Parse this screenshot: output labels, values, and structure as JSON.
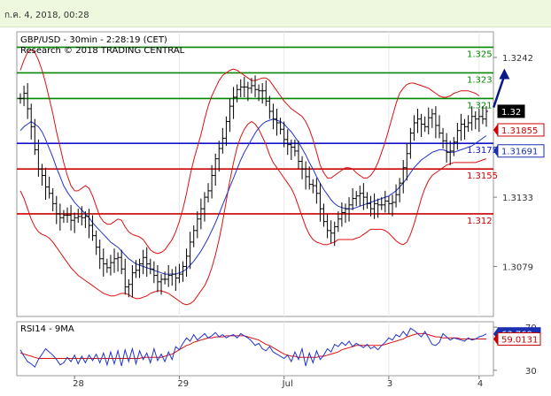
{
  "header": {
    "timestamp": "ก.ค. 4, 2018, 00:28"
  },
  "chart_data": [
    {
      "type": "line",
      "panel": "price",
      "title_line1": "GBP/USD - 30min - 2:28:19 (CET)",
      "title_line2": "Research © 2018 TRADING CENTRAL",
      "ylim": [
        1.304,
        1.3262
      ],
      "y_ticks": [
        {
          "value": 1.3242,
          "label": "1.3242"
        },
        {
          "value": 1.3133,
          "label": "1.3133"
        },
        {
          "value": 1.3079,
          "label": "1.3079"
        }
      ],
      "x_ticks": [
        {
          "index": 15,
          "label": "28"
        },
        {
          "index": 44,
          "label": "29"
        },
        {
          "index": 73,
          "label": "Jul"
        },
        {
          "index": 102,
          "label": "3"
        },
        {
          "index": 127,
          "label": "4"
        }
      ],
      "levels": [
        {
          "value": 1.325,
          "label": "1.325",
          "role": "target"
        },
        {
          "value": 1.323,
          "label": "1.323",
          "role": "target"
        },
        {
          "value": 1.321,
          "label": "1.321",
          "role": "target"
        },
        {
          "value": 1.3175,
          "label": "1.3175",
          "role": "pivot"
        },
        {
          "value": 1.3155,
          "label": "1.3155",
          "role": "support"
        },
        {
          "value": 1.312,
          "label": "1.312",
          "role": "support"
        }
      ],
      "badges": [
        {
          "value": 1.32,
          "label": "1.32",
          "kind": "last"
        },
        {
          "value": 1.31855,
          "label": "1.31855",
          "kind": "red"
        },
        {
          "value": 1.31691,
          "label": "1.31691",
          "kind": "blue"
        }
      ],
      "forecast_arrow": {
        "from": [
          131,
          1.3203
        ],
        "to": [
          134,
          1.3232
        ]
      },
      "close": [
        1.321,
        1.3214,
        1.3202,
        1.3188,
        1.317,
        1.3155,
        1.315,
        1.3141,
        1.3136,
        1.3128,
        1.312,
        1.3117,
        1.3119,
        1.3119,
        1.3115,
        1.3117,
        1.3118,
        1.3117,
        1.3118,
        1.3111,
        1.3103,
        1.3094,
        1.3085,
        1.3081,
        1.3078,
        1.3082,
        1.3085,
        1.3086,
        1.3077,
        1.3063,
        1.3065,
        1.3074,
        1.3076,
        1.3081,
        1.3086,
        1.3081,
        1.3077,
        1.3072,
        1.3067,
        1.3069,
        1.3069,
        1.3072,
        1.3073,
        1.307,
        1.3073,
        1.3079,
        1.3087,
        1.3098,
        1.3107,
        1.3116,
        1.3124,
        1.3133,
        1.3138,
        1.315,
        1.3163,
        1.3171,
        1.3179,
        1.3192,
        1.3204,
        1.3211,
        1.3217,
        1.3219,
        1.3219,
        1.3218,
        1.322,
        1.3217,
        1.3216,
        1.3216,
        1.3208,
        1.32,
        1.3194,
        1.3191,
        1.3186,
        1.3178,
        1.3174,
        1.3172,
        1.3169,
        1.3161,
        1.3155,
        1.3149,
        1.3143,
        1.3142,
        1.3136,
        1.3124,
        1.3114,
        1.3107,
        1.3105,
        1.311,
        1.3116,
        1.3121,
        1.3124,
        1.3127,
        1.3132,
        1.3134,
        1.3136,
        1.3133,
        1.3128,
        1.3124,
        1.3128,
        1.3127,
        1.3127,
        1.313,
        1.3128,
        1.3129,
        1.3135,
        1.3144,
        1.3156,
        1.3167,
        1.3183,
        1.3191,
        1.3194,
        1.319,
        1.3188,
        1.3195,
        1.3198,
        1.3189,
        1.3183,
        1.3177,
        1.3168,
        1.3169,
        1.3176,
        1.3185,
        1.319,
        1.3188,
        1.3191,
        1.3196,
        1.3194,
        1.3196,
        1.3194,
        1.32
      ],
      "moving_average": [
        1.3185,
        1.3188,
        1.319,
        1.3192,
        1.319,
        1.3188,
        1.3184,
        1.3178,
        1.3171,
        1.3164,
        1.3156,
        1.3149,
        1.3142,
        1.3137,
        1.3133,
        1.3129,
        1.3126,
        1.3123,
        1.312,
        1.3117,
        1.3113,
        1.311,
        1.3107,
        1.3104,
        1.3101,
        1.3098,
        1.3096,
        1.3094,
        1.3091,
        1.3088,
        1.3085,
        1.3083,
        1.3081,
        1.308,
        1.3079,
        1.3078,
        1.3077,
        1.3076,
        1.3075,
        1.3074,
        1.3073,
        1.3073,
        1.3073,
        1.3073,
        1.3074,
        1.3075,
        1.3077,
        1.308,
        1.3083,
        1.3087,
        1.3091,
        1.3096,
        1.3101,
        1.3107,
        1.3113,
        1.312,
        1.3127,
        1.3134,
        1.3141,
        1.3148,
        1.3155,
        1.3162,
        1.3168,
        1.3173,
        1.3178,
        1.3183,
        1.3187,
        1.319,
        1.3192,
        1.3193,
        1.3194,
        1.3193,
        1.3192,
        1.319,
        1.3187,
        1.3184,
        1.318,
        1.3176,
        1.3171,
        1.3166,
        1.316,
        1.3155,
        1.3149,
        1.3144,
        1.3139,
        1.3135,
        1.3131,
        1.3128,
        1.3126,
        1.3125,
        1.3124,
        1.3124,
        1.3124,
        1.3125,
        1.3126,
        1.3127,
        1.3128,
        1.3129,
        1.313,
        1.3131,
        1.3132,
        1.3133,
        1.3134,
        1.3136,
        1.3138,
        1.3141,
        1.3144,
        1.3148,
        1.3152,
        1.3156,
        1.3159,
        1.3162,
        1.3164,
        1.3166,
        1.3168,
        1.3169,
        1.317,
        1.317,
        1.3169,
        1.3168,
        1.3168,
        1.3169,
        1.317,
        1.3171,
        1.3172,
        1.3173,
        1.3175,
        1.3177,
        1.3179,
        1.3181
      ],
      "band_upper": [
        1.3232,
        1.324,
        1.3246,
        1.3248,
        1.3246,
        1.324,
        1.3232,
        1.3222,
        1.321,
        1.3198,
        1.3184,
        1.3172,
        1.316,
        1.315,
        1.3142,
        1.3138,
        1.3138,
        1.314,
        1.3142,
        1.314,
        1.3134,
        1.3126,
        1.3118,
        1.3114,
        1.3112,
        1.3112,
        1.3114,
        1.3116,
        1.3115,
        1.311,
        1.3106,
        1.3104,
        1.3103,
        1.3102,
        1.31,
        1.3096,
        1.3092,
        1.309,
        1.3089,
        1.309,
        1.3092,
        1.3096,
        1.31,
        1.3106,
        1.3114,
        1.3124,
        1.3136,
        1.315,
        1.3162,
        1.3172,
        1.3182,
        1.3194,
        1.3204,
        1.3212,
        1.3218,
        1.3224,
        1.3228,
        1.323,
        1.3232,
        1.3233,
        1.3232,
        1.323,
        1.3228,
        1.3226,
        1.3224,
        1.3224,
        1.3225,
        1.3226,
        1.3226,
        1.3224,
        1.322,
        1.3216,
        1.3212,
        1.3208,
        1.3205,
        1.3202,
        1.32,
        1.3198,
        1.3196,
        1.3192,
        1.3186,
        1.3178,
        1.3168,
        1.3158,
        1.3152,
        1.3148,
        1.3148,
        1.315,
        1.3152,
        1.3154,
        1.3156,
        1.3156,
        1.3155,
        1.3152,
        1.315,
        1.3148,
        1.3148,
        1.315,
        1.3154,
        1.316,
        1.3168,
        1.3176,
        1.3186,
        1.3196,
        1.3206,
        1.3214,
        1.3218,
        1.3221,
        1.3222,
        1.3222,
        1.3221,
        1.322,
        1.3219,
        1.3218,
        1.3216,
        1.3214,
        1.3212,
        1.3211,
        1.3211,
        1.3212,
        1.3214,
        1.3215,
        1.3216,
        1.3216,
        1.3216,
        1.3215,
        1.3214,
        1.3212
      ],
      "band_lower": [
        1.3138,
        1.3132,
        1.3124,
        1.3116,
        1.311,
        1.3106,
        1.3104,
        1.3103,
        1.3101,
        1.3098,
        1.3094,
        1.309,
        1.3086,
        1.3082,
        1.3078,
        1.3075,
        1.3072,
        1.307,
        1.3068,
        1.3066,
        1.3064,
        1.3062,
        1.306,
        1.3058,
        1.3057,
        1.3056,
        1.3056,
        1.3057,
        1.3058,
        1.3058,
        1.3057,
        1.3055,
        1.3054,
        1.3054,
        1.3055,
        1.3056,
        1.3058,
        1.3059,
        1.306,
        1.306,
        1.3059,
        1.3058,
        1.3056,
        1.3054,
        1.3052,
        1.305,
        1.3049,
        1.305,
        1.3052,
        1.3056,
        1.306,
        1.3064,
        1.307,
        1.3078,
        1.3088,
        1.31,
        1.3114,
        1.313,
        1.3146,
        1.316,
        1.3172,
        1.318,
        1.3186,
        1.319,
        1.3192,
        1.319,
        1.3186,
        1.318,
        1.3174,
        1.3166,
        1.316,
        1.3156,
        1.3152,
        1.3148,
        1.3144,
        1.314,
        1.3134,
        1.3126,
        1.3118,
        1.311,
        1.3104,
        1.31,
        1.3098,
        1.3097,
        1.3096,
        1.3096,
        1.3097,
        1.3098,
        1.31,
        1.31,
        1.31,
        1.31,
        1.31,
        1.3101,
        1.3102,
        1.3104,
        1.3106,
        1.3108,
        1.3108,
        1.3108,
        1.3108,
        1.3107,
        1.3105,
        1.3102,
        1.3099,
        1.3097,
        1.3096,
        1.3098,
        1.3104,
        1.3112,
        1.3122,
        1.3132,
        1.314,
        1.3146,
        1.315,
        1.3152,
        1.3154,
        1.3156,
        1.3158,
        1.3159,
        1.316,
        1.316,
        1.316,
        1.316,
        1.316,
        1.316,
        1.316,
        1.3161,
        1.3162,
        1.3163
      ]
    },
    {
      "type": "line",
      "panel": "indicator",
      "title": "RSI14 - 9MA",
      "ylim": [
        25,
        75
      ],
      "y_ticks": [
        {
          "value": 70,
          "label": "70"
        },
        {
          "value": 30,
          "label": "30"
        }
      ],
      "badges": [
        {
          "value": 63.769,
          "label": "63.769",
          "kind": "blue"
        },
        {
          "value": 59.0131,
          "label": "59.0131",
          "kind": "red"
        }
      ],
      "rsi": [
        49,
        43,
        38,
        36,
        33,
        40,
        45,
        50,
        47,
        44,
        40,
        35,
        37,
        42,
        38,
        44,
        36,
        43,
        37,
        44,
        39,
        45,
        37,
        46,
        35,
        47,
        36,
        48,
        34,
        49,
        38,
        50,
        36,
        48,
        40,
        46,
        37,
        50,
        39,
        45,
        38,
        47,
        40,
        52,
        49,
        55,
        60,
        57,
        63,
        58,
        61,
        64,
        60,
        62,
        65,
        61,
        63,
        60,
        62,
        63,
        60,
        64,
        62,
        60,
        57,
        53,
        55,
        50,
        48,
        52,
        47,
        45,
        43,
        41,
        44,
        38,
        47,
        40,
        50,
        34,
        46,
        37,
        48,
        40,
        44,
        50,
        47,
        54,
        52,
        56,
        53,
        57,
        52,
        55,
        53,
        51,
        54,
        50,
        52,
        49,
        53,
        56,
        60,
        58,
        63,
        61,
        66,
        62,
        69,
        67,
        64,
        61,
        66,
        60,
        54,
        53,
        56,
        64,
        61,
        58,
        60,
        59,
        58,
        57,
        60,
        58,
        59,
        61,
        62,
        63.769
      ],
      "rsi_ma": [
        46,
        45,
        44,
        43,
        42,
        41,
        41,
        41,
        41,
        41,
        41,
        41,
        41,
        41,
        41,
        41,
        41,
        41,
        41,
        41,
        41,
        41,
        41,
        41,
        41,
        41,
        41,
        41,
        41,
        41,
        41,
        41,
        41,
        41,
        42,
        42,
        42,
        42,
        42,
        42,
        43,
        44,
        45,
        47,
        49,
        51,
        53,
        54,
        56,
        57,
        58,
        59,
        60,
        60,
        61,
        61,
        61,
        62,
        62,
        62,
        62,
        62,
        62,
        61,
        60,
        59,
        58,
        56,
        54,
        53,
        51,
        49,
        47,
        45,
        44,
        43,
        43,
        42,
        42,
        42,
        42,
        42,
        42,
        43,
        43,
        44,
        45,
        46,
        47,
        49,
        50,
        51,
        52,
        53,
        53,
        53,
        53,
        53,
        53,
        53,
        53,
        54,
        55,
        56,
        57,
        58,
        59,
        61,
        62,
        63,
        64,
        64,
        64,
        63,
        62,
        61,
        61,
        60,
        60,
        60,
        60,
        60,
        59,
        59,
        59,
        59,
        59,
        59,
        59,
        59.0131
      ]
    }
  ],
  "colors": {
    "candle": "#000000",
    "moving_average": "#2233cc",
    "bands": "#dd1111",
    "target_line": "#008800",
    "pivot_line": "#1111cc",
    "support_line": "#cc0000",
    "forecast_arrow": "#0a1a8a",
    "rsi": "#2233cc",
    "rsi_ma": "#dd1111",
    "header_bg": "#eef8df"
  }
}
